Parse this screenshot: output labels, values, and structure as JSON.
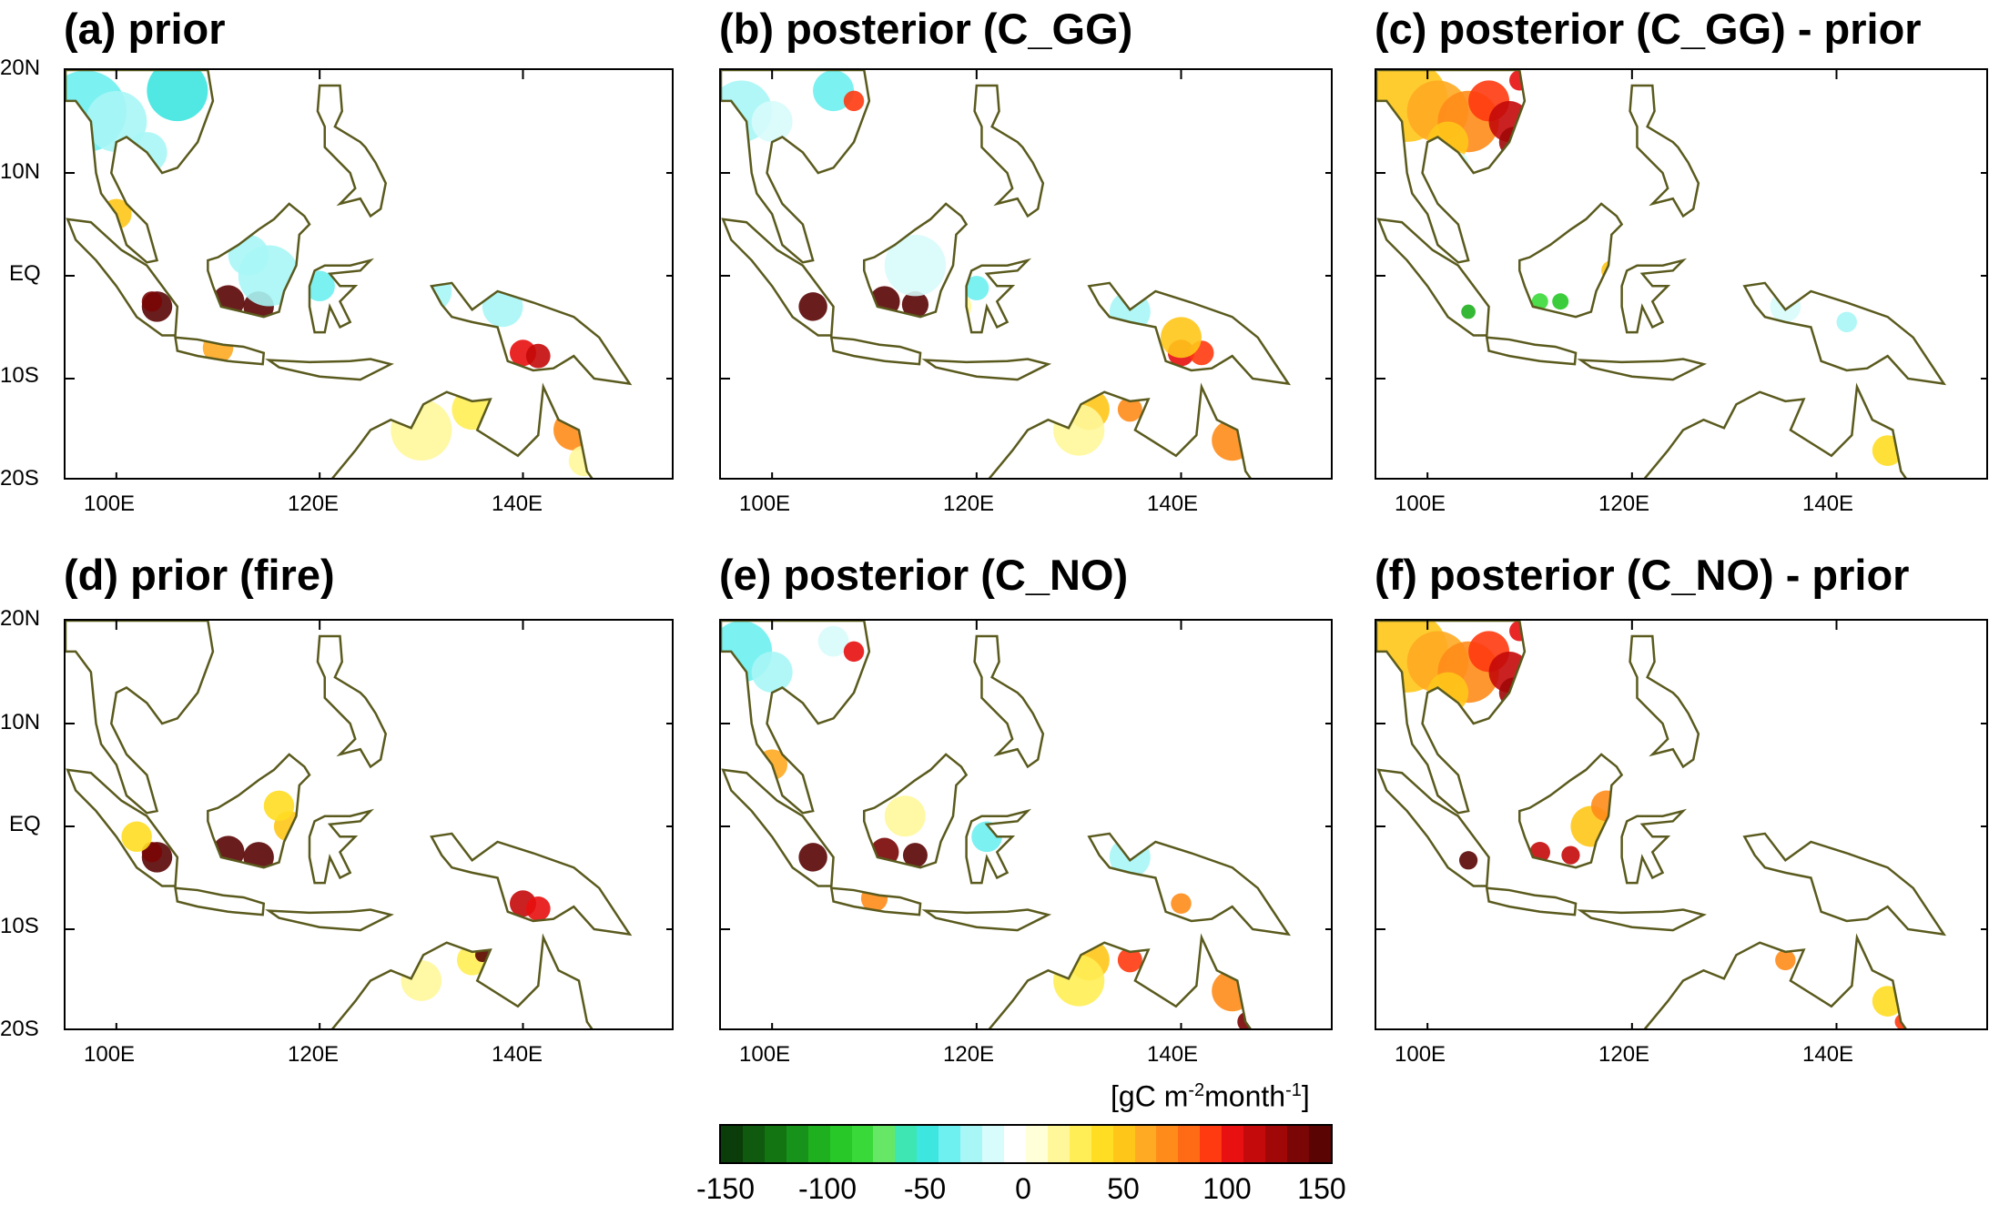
{
  "panels": [
    {
      "title": "(a) prior"
    },
    {
      "title": "(b) posterior (C_GG)"
    },
    {
      "title": "(c) posterior (C_GG) - prior"
    },
    {
      "title": "(d) prior (fire)"
    },
    {
      "title": "(e) posterior (C_NO)"
    },
    {
      "title": "(f) posterior (C_NO) - prior"
    }
  ],
  "axes": {
    "lat_labels": [
      "20N",
      "10N",
      "EQ",
      "10S",
      "20S"
    ],
    "lon_labels": [
      "100E",
      "120E",
      "140E"
    ]
  },
  "colorbar": {
    "unit_prefix": "[gC m",
    "unit_exp1": "-2",
    "unit_mid": "month",
    "unit_exp2": "-1",
    "unit_suffix": "]",
    "tick_labels": [
      "-150",
      "-100",
      "-50",
      "0",
      "50",
      "100",
      "150"
    ],
    "colors": [
      "#0a3d0a",
      "#0f5a0f",
      "#127512",
      "#17921a",
      "#1fb01f",
      "#27c827",
      "#3ad93a",
      "#66e866",
      "#3ee6b4",
      "#3ee6e0",
      "#6ef0f0",
      "#a8f6f6",
      "#d8fbfb",
      "#ffffff",
      "#ffffd8",
      "#fff79a",
      "#ffee55",
      "#ffdd22",
      "#ffc61a",
      "#ffaa22",
      "#ff8c1a",
      "#ff6a14",
      "#ff3a10",
      "#e81010",
      "#c40a0a",
      "#a00808",
      "#7a0606",
      "#5a0404"
    ]
  },
  "map_extent": {
    "lon": [
      95,
      155
    ],
    "lat": [
      -20,
      20
    ]
  }
}
